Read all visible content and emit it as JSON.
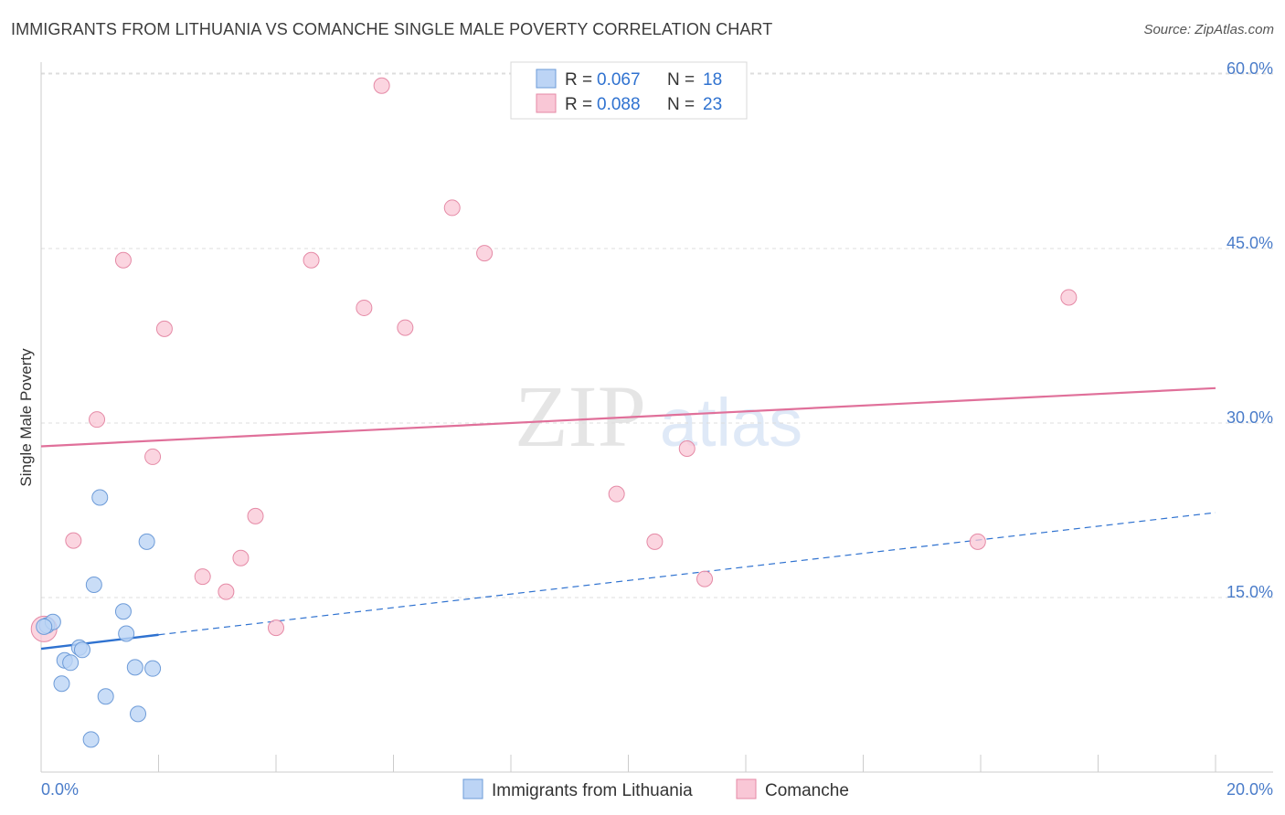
{
  "header": {
    "title": "IMMIGRANTS FROM LITHUANIA VS COMANCHE SINGLE MALE POVERTY CORRELATION CHART",
    "source": "Source: ZipAtlas.com"
  },
  "watermark": {
    "zip": "ZIP",
    "atlas": "atlas"
  },
  "colors": {
    "series_blue_fill": "#bcd4f5",
    "series_blue_stroke": "#6d9bd8",
    "series_blue_line": "#2f72d0",
    "series_pink_fill": "#f9c7d6",
    "series_pink_stroke": "#e58aa6",
    "series_pink_line": "#e0709a",
    "tick_label": "#4a7cc9",
    "grid": "#dddddd"
  },
  "chart_data": {
    "type": "scatter",
    "title": "IMMIGRANTS FROM LITHUANIA VS COMANCHE SINGLE MALE POVERTY CORRELATION CHART",
    "xlabel": "",
    "ylabel": "Single Male Poverty",
    "xlim": [
      0,
      20
    ],
    "ylim": [
      0,
      60
    ],
    "x_tick_labels": [
      "0.0%",
      "20.0%"
    ],
    "y_ticks": [
      15,
      30,
      45,
      60
    ],
    "y_tick_labels": [
      "15.0%",
      "30.0%",
      "45.0%",
      "60.0%"
    ],
    "legend": [
      {
        "name": "Immigrants from Lithuania",
        "r_label": "R =",
        "r": "0.067",
        "n_label": "N =",
        "n": "18"
      },
      {
        "name": "Comanche",
        "r_label": "R =",
        "r": "0.088",
        "n_label": "N =",
        "n": "23"
      }
    ],
    "series": [
      {
        "name": "Immigrants from Lithuania",
        "points": [
          [
            0.1,
            12.6
          ],
          [
            0.2,
            12.9
          ],
          [
            0.35,
            7.6
          ],
          [
            0.4,
            9.6
          ],
          [
            0.5,
            9.4
          ],
          [
            0.65,
            10.7
          ],
          [
            0.7,
            10.5
          ],
          [
            0.85,
            2.8
          ],
          [
            0.9,
            16.1
          ],
          [
            1.0,
            23.6
          ],
          [
            1.1,
            6.5
          ],
          [
            1.4,
            13.8
          ],
          [
            1.45,
            11.9
          ],
          [
            1.6,
            9.0
          ],
          [
            1.65,
            5.0
          ],
          [
            1.8,
            19.8
          ],
          [
            1.9,
            8.9
          ],
          [
            0.05,
            12.5
          ]
        ],
        "trend": {
          "x": [
            0,
            2.0
          ],
          "y": [
            10.6,
            11.8
          ]
        },
        "trend_extended": {
          "x": [
            2.0,
            20.0
          ],
          "y": [
            11.8,
            22.3
          ]
        }
      },
      {
        "name": "Comanche",
        "points": [
          [
            0.05,
            12.3
          ],
          [
            0.55,
            19.9
          ],
          [
            0.95,
            30.3
          ],
          [
            1.4,
            44.0
          ],
          [
            1.9,
            27.1
          ],
          [
            2.1,
            38.1
          ],
          [
            2.75,
            16.8
          ],
          [
            3.15,
            15.5
          ],
          [
            3.4,
            18.4
          ],
          [
            3.65,
            22.0
          ],
          [
            4.0,
            12.4
          ],
          [
            4.6,
            44.0
          ],
          [
            5.5,
            39.9
          ],
          [
            5.8,
            59.0
          ],
          [
            6.2,
            38.2
          ],
          [
            7.0,
            48.5
          ],
          [
            7.55,
            44.6
          ],
          [
            9.8,
            23.9
          ],
          [
            10.45,
            19.8
          ],
          [
            11.0,
            27.8
          ],
          [
            11.3,
            16.6
          ],
          [
            15.95,
            19.8
          ],
          [
            17.5,
            40.8
          ]
        ],
        "trend": {
          "x": [
            0,
            20.0
          ],
          "y": [
            28.0,
            33.0
          ]
        }
      }
    ]
  }
}
